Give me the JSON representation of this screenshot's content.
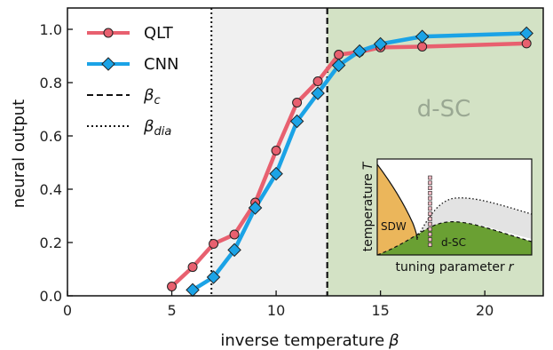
{
  "chart_data": {
    "type": "line",
    "xlabel": "inverse temperature",
    "xlabel_symbol": "β",
    "ylabel": "neural output",
    "xlim": [
      0,
      22.8
    ],
    "ylim": [
      0,
      1.08
    ],
    "xticks": [
      0,
      5,
      10,
      15,
      20
    ],
    "yticks": [
      0.0,
      0.2,
      0.4,
      0.6,
      0.8,
      1.0
    ],
    "ytick_labels": [
      "0.0",
      "0.2",
      "0.4",
      "0.6",
      "0.8",
      "1.0"
    ],
    "grid": false,
    "legend_position": "top-left",
    "series": [
      {
        "name": "QLT",
        "color": "#e8606f",
        "marker": "circle",
        "x": [
          5,
          6,
          7,
          8,
          9,
          10,
          11,
          12,
          13,
          14,
          15,
          17,
          22
        ],
        "y": [
          0.035,
          0.108,
          0.195,
          0.23,
          0.35,
          0.545,
          0.725,
          0.805,
          0.905,
          0.915,
          0.932,
          0.935,
          0.947
        ]
      },
      {
        "name": "CNN",
        "color": "#1ba3e6",
        "marker": "diamond",
        "x": [
          6,
          7,
          8,
          9,
          10,
          11,
          12,
          13,
          14,
          15,
          17,
          22
        ],
        "y": [
          0.022,
          0.07,
          0.172,
          0.33,
          0.458,
          0.655,
          0.76,
          0.865,
          0.918,
          0.945,
          0.973,
          0.985
        ]
      }
    ],
    "reference_lines": [
      {
        "name": "β_c",
        "label_main": "β",
        "label_sub": "c",
        "style": "dashed",
        "x": 12.45
      },
      {
        "name": "β_dia",
        "label_main": "β",
        "label_sub": "dia",
        "style": "dotted",
        "x": 6.9
      }
    ],
    "regions": [
      {
        "color": "#f0f0f0",
        "x_from": 6.9,
        "x_to": 12.45,
        "label": ""
      },
      {
        "color": "#d3e2c5",
        "x_from": 12.45,
        "x_to": 22.8,
        "label": "d-SC"
      }
    ],
    "inset": {
      "xlabel": "tuning parameter",
      "xlabel_symbol": "r",
      "ylabel": "temperature",
      "ylabel_symbol": "T",
      "region_labels": [
        "SDW",
        "d-SC"
      ],
      "colors": {
        "sdw": "#ebb65b",
        "dsc": "#6aa033",
        "fluct": "#e3e3e3",
        "points": "#ecb6c0"
      },
      "point_count": 14
    }
  }
}
